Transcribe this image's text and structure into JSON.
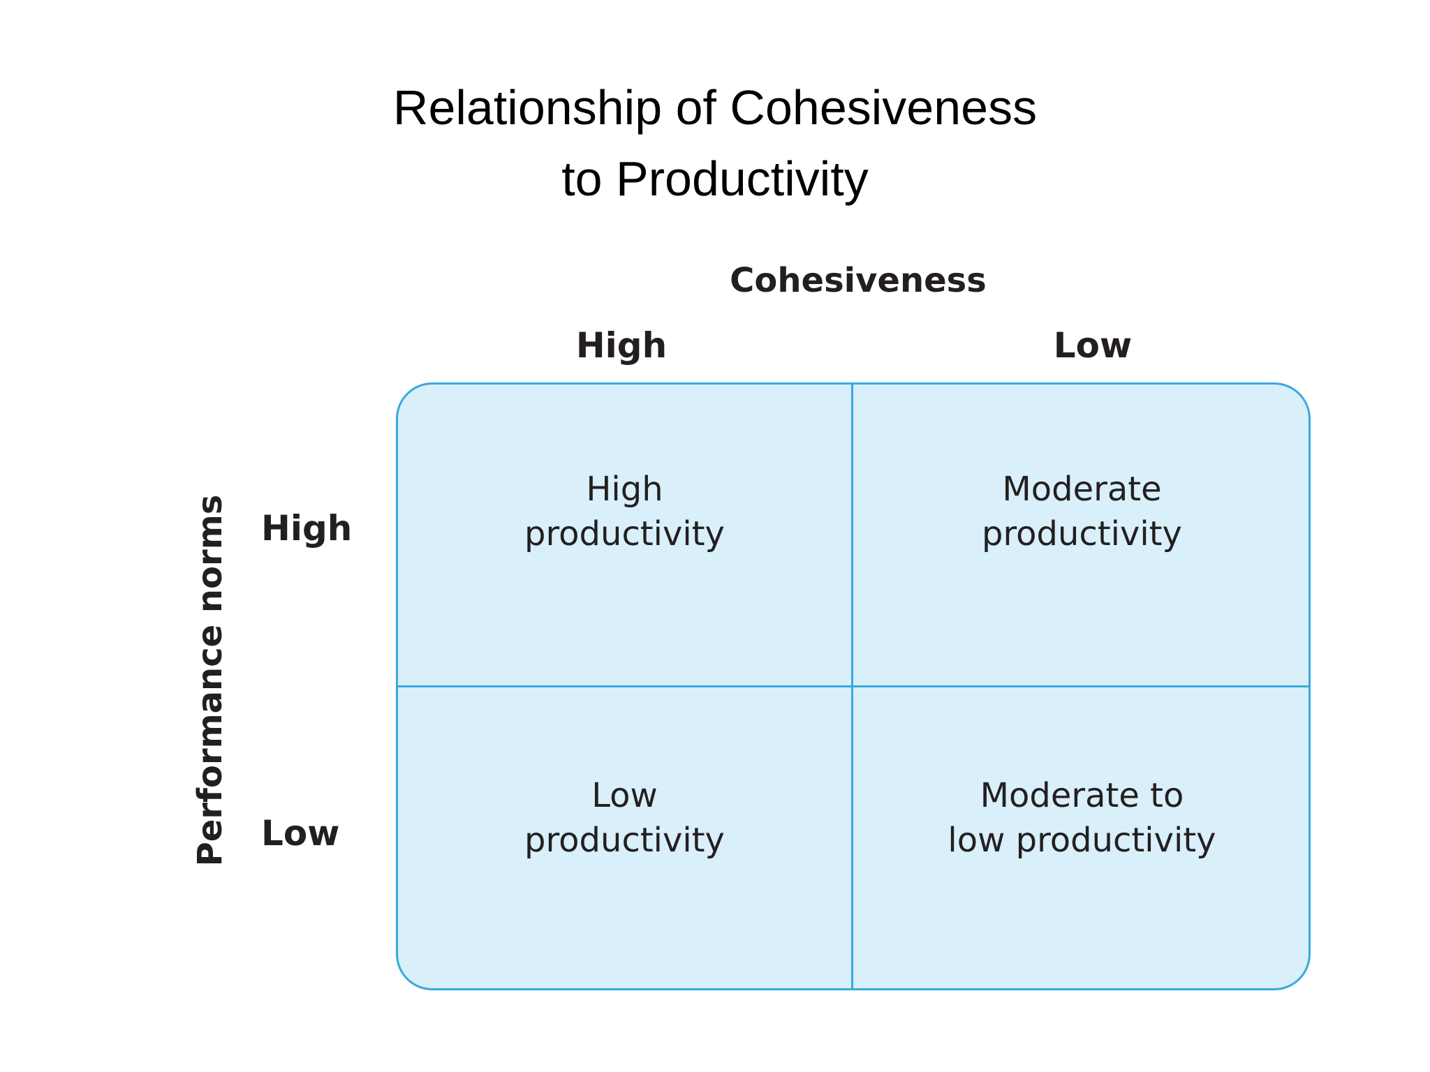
{
  "title": {
    "line1": "Relationship of Cohesiveness",
    "line2": "to Productivity"
  },
  "x_axis": {
    "title": "Cohesiveness",
    "columns": [
      "High",
      "Low"
    ]
  },
  "y_axis": {
    "title": "Performance norms",
    "rows": [
      "High",
      "Low"
    ]
  },
  "cells": {
    "high_norms_high_cohesion": {
      "line1": "High",
      "line2": "productivity"
    },
    "high_norms_low_cohesion": {
      "line1": "Moderate",
      "line2": "productivity"
    },
    "low_norms_high_cohesion": {
      "line1": "Low",
      "line2": "productivity"
    },
    "low_norms_low_cohesion": {
      "line1": "Moderate to",
      "line2": "low productivity"
    }
  },
  "colors": {
    "cell_fill": "#d9effa",
    "border": "#3aa9dc",
    "text": "#231f20"
  }
}
